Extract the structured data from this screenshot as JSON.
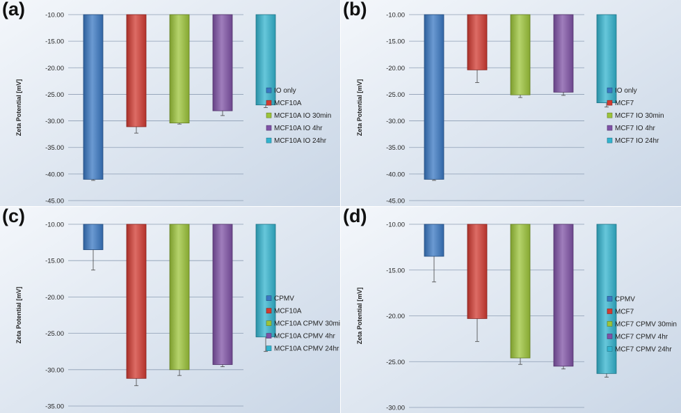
{
  "chart_data": [
    {
      "type": "bar",
      "panel_label": "(a)",
      "ylabel": "Zeta Potential [mV]",
      "ylim": [
        -45,
        -10
      ],
      "yticks": [
        "-10.00",
        "-15.00",
        "-20.00",
        "-25.00",
        "-30.00",
        "-35.00",
        "-40.00",
        "-45.00"
      ],
      "series": [
        {
          "name": "IO only",
          "value": -41.0,
          "error": 0.2,
          "color": "#3a78c3"
        },
        {
          "name": "MCF10A",
          "value": -31.1,
          "error": 1.2,
          "color": "#d23b32"
        },
        {
          "name": "MCF10A IO 30min",
          "value": -30.4,
          "error": 0.2,
          "color": "#9cc43a"
        },
        {
          "name": "MCF10A IO 4hr",
          "value": -28.1,
          "error": 0.9,
          "color": "#7f52a6"
        },
        {
          "name": "MCF10A IO 24hr",
          "value": -27.0,
          "error": 0.5,
          "color": "#33b4cf"
        }
      ],
      "legend_position": "right",
      "grid": true
    },
    {
      "type": "bar",
      "panel_label": "(b)",
      "ylabel": "Zeta Potential [mV]",
      "ylim": [
        -45,
        -10
      ],
      "yticks": [
        "-10.00",
        "-15.00",
        "-20.00",
        "-25.00",
        "-30.00",
        "-35.00",
        "-40.00",
        "-45.00"
      ],
      "series": [
        {
          "name": "IO only",
          "value": -41.0,
          "error": 0.2,
          "color": "#3a78c3"
        },
        {
          "name": "MCF7",
          "value": -20.4,
          "error": 2.4,
          "color": "#d23b32"
        },
        {
          "name": "MCF7 IO 30min",
          "value": -25.1,
          "error": 0.5,
          "color": "#9cc43a"
        },
        {
          "name": "MCF7 IO 4hr",
          "value": -24.6,
          "error": 0.6,
          "color": "#7f52a6"
        },
        {
          "name": "MCF7 IO 24hr",
          "value": -26.6,
          "error": 0.8,
          "color": "#33b4cf"
        }
      ],
      "legend_position": "right",
      "grid": true
    },
    {
      "type": "bar",
      "panel_label": "(c)",
      "ylabel": "Zeta Potential [mV]",
      "ylim": [
        -35,
        -10
      ],
      "yticks": [
        "-10.00",
        "-15.00",
        "-20.00",
        "-25.00",
        "-30.00",
        "-35.00"
      ],
      "series": [
        {
          "name": "CPMV",
          "value": -13.5,
          "error": 2.8,
          "color": "#3a78c3"
        },
        {
          "name": "MCF10A",
          "value": -31.2,
          "error": 1.0,
          "color": "#d23b32"
        },
        {
          "name": "MCF10A CPMV 30min",
          "value": -30.0,
          "error": 0.8,
          "color": "#9cc43a"
        },
        {
          "name": "MCF10A CPMV 4hr",
          "value": -29.3,
          "error": 0.3,
          "color": "#7f52a6"
        },
        {
          "name": "MCF10A CPMV 24hr",
          "value": -25.5,
          "error": 2.0,
          "color": "#33b4cf"
        }
      ],
      "legend_position": "right",
      "grid": true
    },
    {
      "type": "bar",
      "panel_label": "(d)",
      "ylabel": "Zeta Potential [mV]",
      "ylim": [
        -30,
        -10
      ],
      "yticks": [
        "-10.00",
        "-15.00",
        "-20.00",
        "-25.00",
        "-30.00"
      ],
      "series": [
        {
          "name": "CPMV",
          "value": -13.5,
          "error": 2.8,
          "color": "#3a78c3"
        },
        {
          "name": "MCF7",
          "value": -20.3,
          "error": 2.5,
          "color": "#d23b32"
        },
        {
          "name": "MCF7 CPMV 30min",
          "value": -24.6,
          "error": 0.7,
          "color": "#9cc43a"
        },
        {
          "name": "MCF7 CPMV 4hr",
          "value": -25.5,
          "error": 0.3,
          "color": "#7f52a6"
        },
        {
          "name": "MCF7 CPMV 24hr",
          "value": -26.3,
          "error": 0.4,
          "color": "#33b4cf"
        }
      ],
      "legend_position": "right",
      "grid": true
    }
  ]
}
